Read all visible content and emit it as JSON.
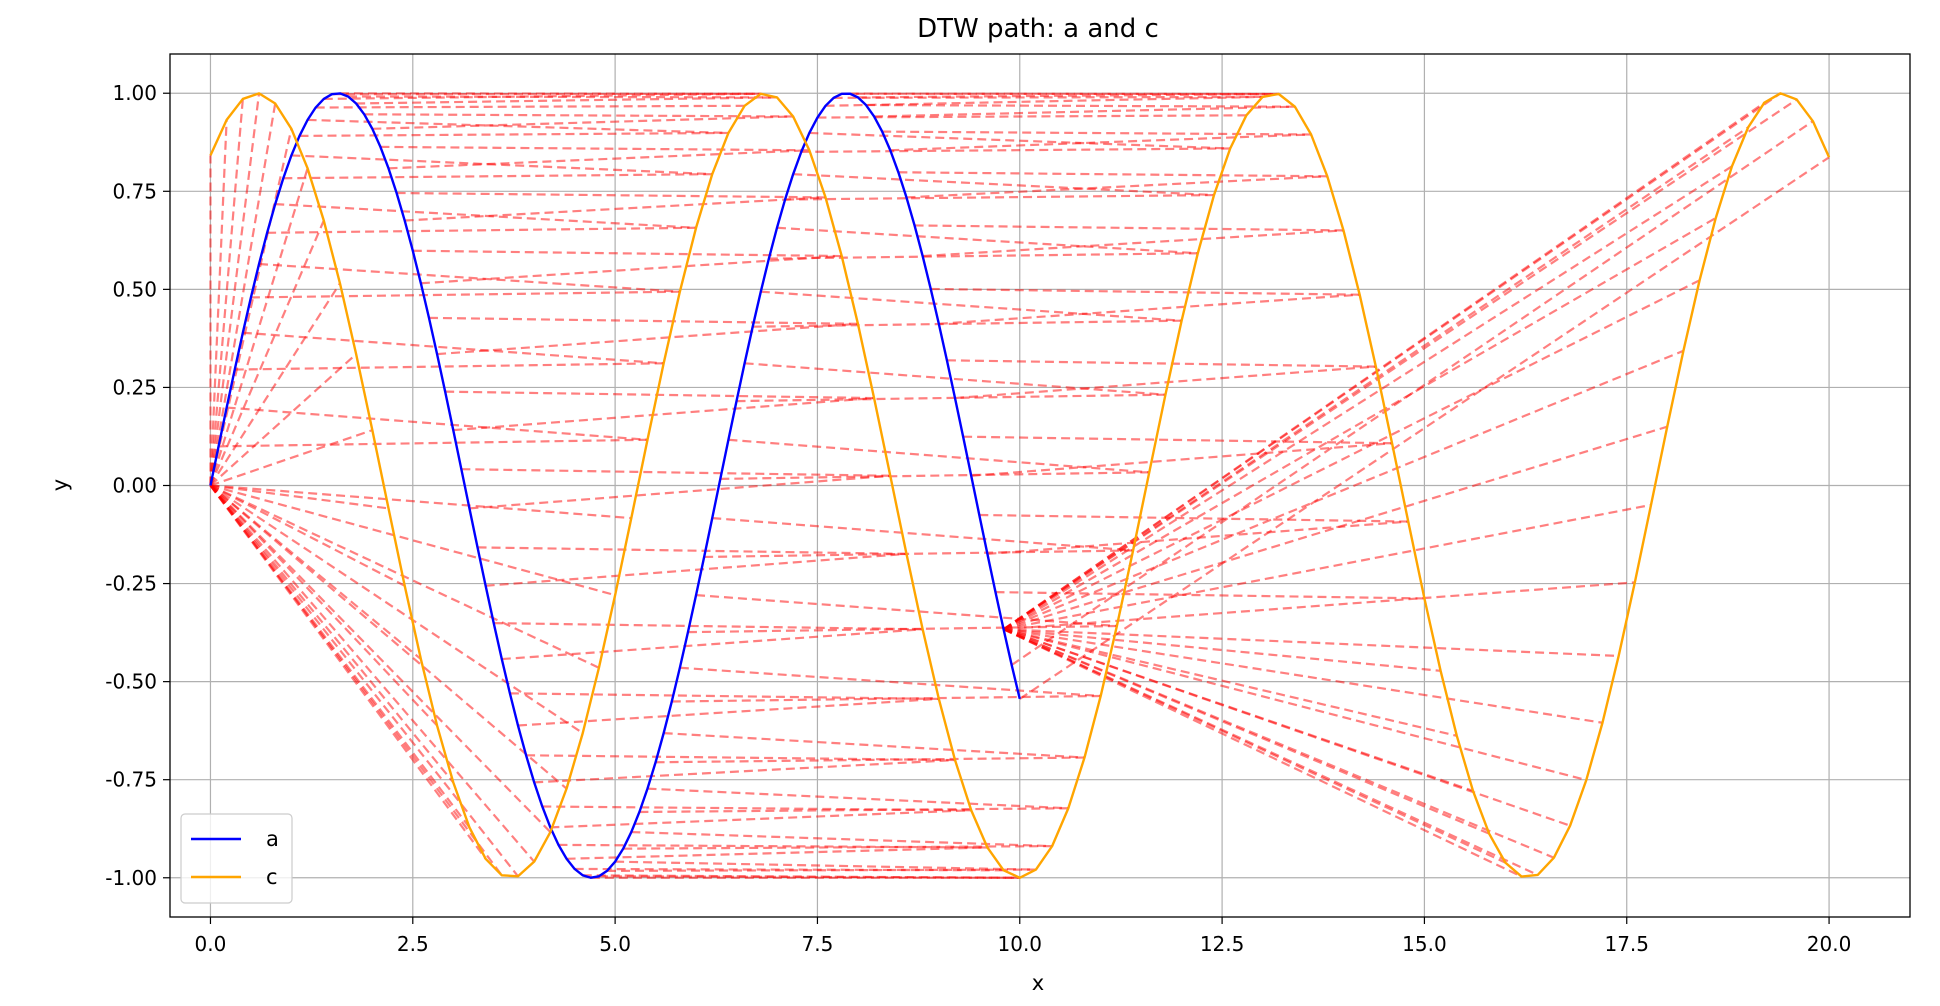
{
  "chart_data": {
    "type": "line",
    "title": "DTW path: a and c",
    "xlabel": "x",
    "ylabel": "y",
    "xlim": [
      -0.5,
      21.0
    ],
    "ylim": [
      -1.1,
      1.1
    ],
    "x_ticks": [
      0.0,
      2.5,
      5.0,
      7.5,
      10.0,
      12.5,
      15.0,
      17.5,
      20.0
    ],
    "x_tick_labels": [
      "0.0",
      "2.5",
      "5.0",
      "7.5",
      "10.0",
      "12.5",
      "15.0",
      "17.5",
      "20.0"
    ],
    "y_ticks": [
      1.0,
      0.75,
      0.5,
      0.25,
      0.0,
      -0.25,
      -0.5,
      -0.75,
      -1.0
    ],
    "y_tick_labels": [
      "1.00",
      "0.75",
      "0.50",
      "0.25",
      "0.00",
      "-0.25",
      "-0.50",
      "-0.75",
      "-1.00"
    ],
    "grid": true,
    "legend_position": "lower-left",
    "series": [
      {
        "name": "a",
        "color": "#0000ff",
        "function": "sin(x)",
        "x_range": [
          0,
          10
        ],
        "samples": 101
      },
      {
        "name": "c",
        "color": "#ffa500",
        "function": "sin(x + 1)",
        "x_range": [
          0,
          20
        ],
        "samples": 101
      }
    ],
    "dtw_path": {
      "color": "#ff0000",
      "opacity": 0.5,
      "style": "dashed",
      "connects": [
        "a",
        "c"
      ]
    }
  }
}
